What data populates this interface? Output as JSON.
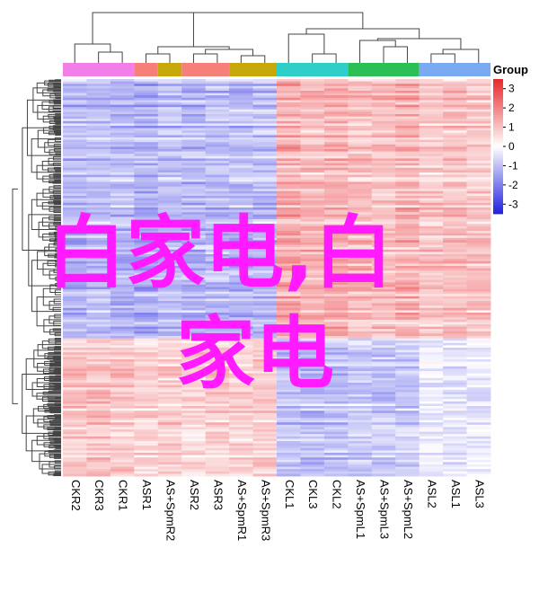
{
  "chart_data": {
    "type": "heatmap",
    "columns": [
      "CKR2",
      "CKR3",
      "CKR1",
      "ASR1",
      "AS+SpmR2",
      "ASR2",
      "ASR3",
      "AS+SpmR1",
      "AS+SpmR3",
      "CKL1",
      "CKL3",
      "CKL2",
      "AS+SpmL1",
      "AS+SpmL3",
      "AS+SpmL2",
      "ASL2",
      "ASL1",
      "ASL3"
    ],
    "group_title": "Group",
    "groups": [
      {
        "color": "#f27fe8",
        "columns": [
          "CKR2",
          "CKR3",
          "CKR1"
        ]
      },
      {
        "color": "#f5807a",
        "columns": [
          "ASR1"
        ]
      },
      {
        "color": "#c6a80b",
        "columns": [
          "AS+SpmR2"
        ]
      },
      {
        "color": "#f5807a",
        "columns": [
          "ASR2",
          "ASR3"
        ]
      },
      {
        "color": "#c6a80b",
        "columns": [
          "AS+SpmR1",
          "AS+SpmR3"
        ]
      },
      {
        "color": "#2fcfc8",
        "columns": [
          "CKL1",
          "CKL3",
          "CKL2"
        ]
      },
      {
        "color": "#2bbf55",
        "columns": [
          "AS+SpmL1",
          "AS+SpmL3",
          "AS+SpmL2"
        ]
      },
      {
        "color": "#7aaaf2",
        "columns": [
          "ASL2",
          "ASL1",
          "ASL3"
        ]
      }
    ],
    "colorbar_ticks": [
      3,
      2,
      1,
      0,
      -1,
      -2,
      -3
    ],
    "colorbar_range": [
      -3.5,
      3.5
    ],
    "colors": {
      "high": "#e8262b",
      "mid": "#ffffff",
      "low": "#2020e0"
    },
    "clusters": [
      {
        "rows": 0.65,
        "values": [
          -1.1,
          -1.0,
          -1.1,
          -1.2,
          -1.0,
          -1.1,
          -1.0,
          -1.1,
          -1.0,
          1.3,
          1.1,
          1.2,
          1.0,
          1.0,
          1.2,
          0.9,
          1.0,
          0.9
        ]
      },
      {
        "rows": 0.35,
        "values": [
          0.9,
          1.0,
          0.9,
          0.7,
          0.8,
          0.7,
          0.8,
          0.7,
          0.8,
          -0.9,
          -1.0,
          -1.0,
          -0.8,
          -0.9,
          -0.8,
          -0.3,
          -0.4,
          -0.3
        ]
      }
    ]
  },
  "overlay": {
    "line1": "白家电,白",
    "line2": "家电",
    "color": "#ff1aff"
  }
}
